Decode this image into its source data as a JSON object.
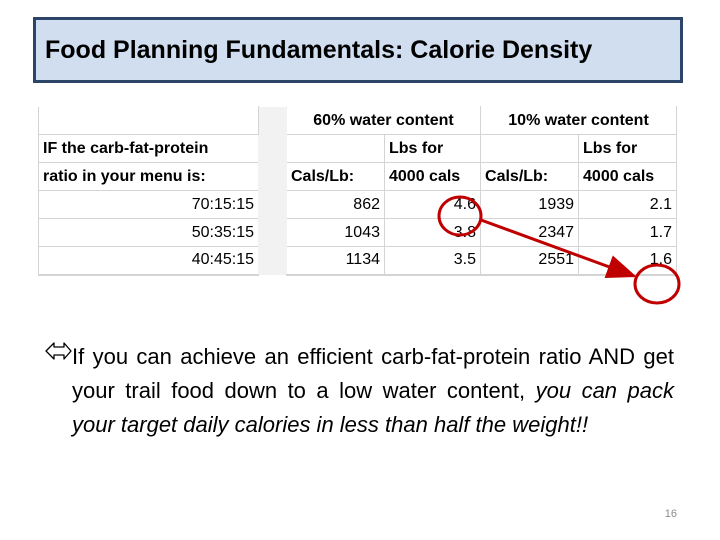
{
  "title": "Food Planning Fundamentals:  Calorie Density",
  "table": {
    "group_headers": [
      "60% water content",
      "10% water content"
    ],
    "row_label_header": [
      "IF the carb-fat-protein",
      "ratio in your menu is:"
    ],
    "col_headers_line1": [
      "",
      "Lbs for",
      "",
      "Lbs for"
    ],
    "col_headers_line2": [
      "Cals/Lb:",
      "4000 cals",
      "Cals/Lb:",
      "4000 cals"
    ],
    "rows": [
      {
        "ratio": "70:15:15",
        "cals60": "862",
        "lbs60": "4.6",
        "cals10": "1939",
        "lbs10": "2.1"
      },
      {
        "ratio": "50:35:15",
        "cals60": "1043",
        "lbs60": "3.8",
        "cals10": "2347",
        "lbs10": "1.7"
      },
      {
        "ratio": "40:45:15",
        "cals60": "1134",
        "lbs60": "3.5",
        "cals10": "2551",
        "lbs10": "1.6"
      }
    ],
    "highlight_color": "#c00000"
  },
  "bullet": {
    "icon": "double-arrow-icon",
    "text_plain": "If you can achieve an efficient carb-fat-protein ratio AND get your trail food down to a low water content, ",
    "text_italic": "you can pack your target daily calories in less than half the weight!!"
  },
  "page_number": "16",
  "colors": {
    "title_bg": "#d1def0",
    "title_border": "#2b4468"
  }
}
